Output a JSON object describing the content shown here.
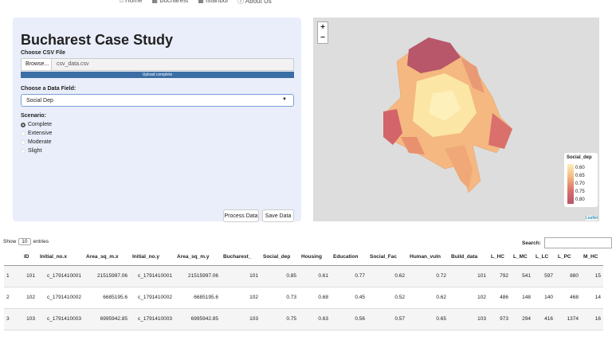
{
  "nav": {
    "items": [
      "Home",
      "Bucharest",
      "Istanbul",
      "About Us"
    ]
  },
  "panel": {
    "title": "Bucharest Case Study",
    "file_label": "Choose CSV File",
    "browse": "Browse...",
    "file_name": "csv_data.csv",
    "progress": "Upload complete",
    "field_label": "Choose a Data Field:",
    "field_value": "Social Dep",
    "scenario_label": "Scenario:",
    "scenarios": [
      "Complete",
      "Extensive",
      "Moderate",
      "Slight"
    ],
    "buttons": [
      "Process Data",
      "Save Data"
    ]
  },
  "map": {
    "zoom_in": "+",
    "zoom_out": "−",
    "legend_title": "Social_dep",
    "legend_labels": [
      "0.60",
      "0.65",
      "0.70",
      "0.75",
      "0.80"
    ],
    "attribution": "Leaflet"
  },
  "table": {
    "show": "Show",
    "length": "10",
    "entries": "entries",
    "search": "Search:",
    "columns": [
      "ID",
      "Initial_no.x",
      "Area_sq_m.x",
      "Initial_no.y",
      "Area_sq_m.y",
      "Bucharest_",
      "Social_dep",
      "Housing",
      "Education",
      "Social_Fac",
      "Human_vuln",
      "Build_data",
      "L_HC",
      "L_MC",
      "L_LC",
      "L_PC",
      "M_HC"
    ],
    "rows": [
      [
        "1",
        "101",
        "c_1791410001",
        "21515997.06",
        "c_1791410001",
        "21515997.06",
        "101",
        "0.85",
        "0.61",
        "0.77",
        "0.62",
        "0.72",
        "101",
        "792",
        "541",
        "597",
        "880",
        "15"
      ],
      [
        "2",
        "102",
        "c_1791410002",
        "6685195.6",
        "c_1791410002",
        "6685195.6",
        "102",
        "0.73",
        "0.68",
        "0.45",
        "0.52",
        "0.62",
        "102",
        "486",
        "148",
        "140",
        "468",
        "14"
      ],
      [
        "3",
        "103",
        "c_1791410003",
        "6995942.85",
        "c_1791410003",
        "6995942.85",
        "103",
        "0.75",
        "0.63",
        "0.56",
        "0.57",
        "0.65",
        "103",
        "973",
        "294",
        "416",
        "1374",
        "16"
      ]
    ]
  }
}
